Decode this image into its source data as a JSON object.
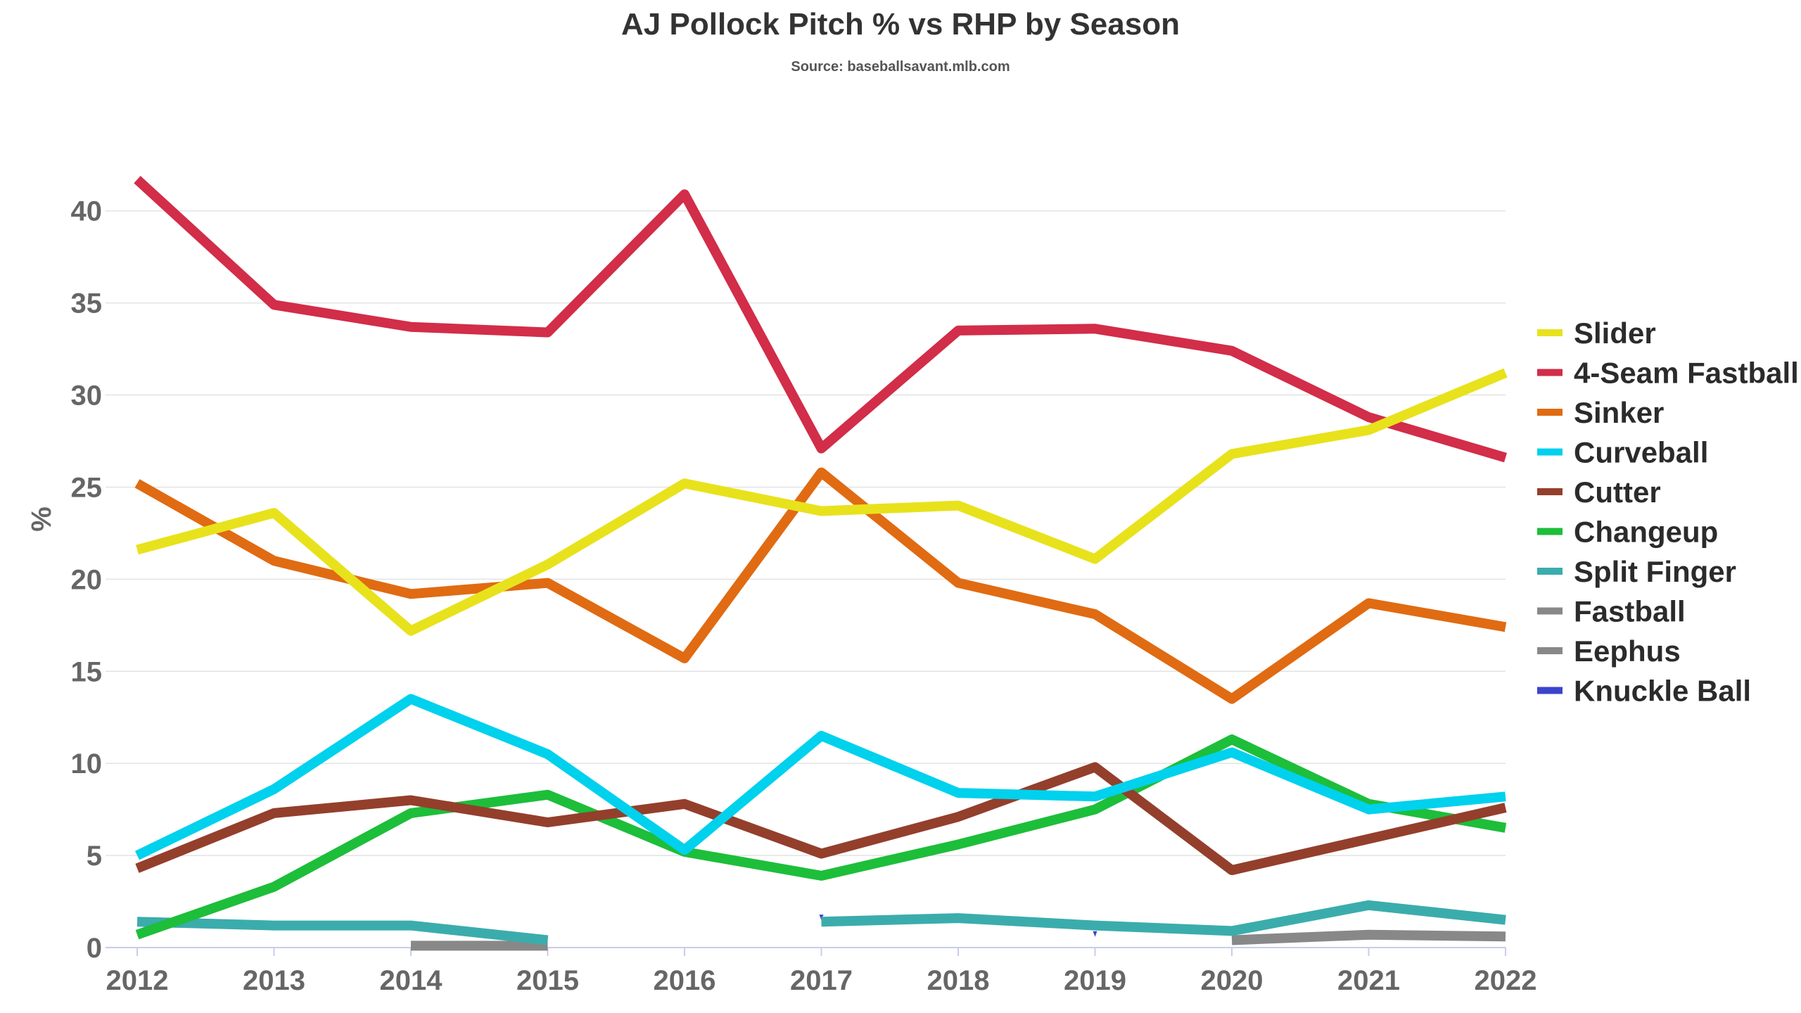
{
  "chart_data": {
    "type": "line",
    "title": "AJ Pollock Pitch % vs RHP by Season",
    "subtitle": "Source: baseballsavant.mlb.com",
    "xlabel": "",
    "ylabel": "%",
    "x": [
      2012,
      2013,
      2014,
      2015,
      2016,
      2017,
      2018,
      2019,
      2020,
      2021,
      2022
    ],
    "ylim": [
      0,
      44
    ],
    "yticks": [
      0,
      5,
      10,
      15,
      20,
      25,
      30,
      35,
      40
    ],
    "grid": true,
    "legend_position": "right",
    "series": [
      {
        "name": "Slider",
        "color": "#e8e21c",
        "values": [
          21.6,
          23.6,
          17.2,
          20.8,
          25.2,
          23.7,
          24.0,
          21.1,
          26.8,
          28.1,
          31.2
        ]
      },
      {
        "name": "4-Seam Fastball",
        "color": "#d22d49",
        "values": [
          41.7,
          34.9,
          33.7,
          33.4,
          40.9,
          27.1,
          33.5,
          33.6,
          32.4,
          28.8,
          26.6
        ]
      },
      {
        "name": "Sinker",
        "color": "#e06b12",
        "values": [
          25.2,
          21.0,
          19.2,
          19.8,
          15.7,
          25.8,
          19.8,
          18.1,
          13.5,
          18.7,
          17.4
        ]
      },
      {
        "name": "Curveball",
        "color": "#00d1ed",
        "values": [
          5.0,
          8.6,
          13.5,
          10.5,
          5.3,
          11.5,
          8.4,
          8.2,
          10.6,
          7.5,
          8.2
        ]
      },
      {
        "name": "Cutter",
        "color": "#933f2c",
        "values": [
          4.3,
          7.3,
          8.0,
          6.8,
          7.8,
          5.1,
          7.1,
          9.8,
          4.2,
          5.9,
          7.6
        ]
      },
      {
        "name": "Changeup",
        "color": "#1dbe3a",
        "values": [
          0.7,
          3.3,
          7.3,
          8.3,
          5.2,
          3.9,
          5.6,
          7.5,
          11.3,
          7.8,
          6.5
        ]
      },
      {
        "name": "Split Finger",
        "color": "#3bacac",
        "values": [
          1.4,
          1.2,
          1.2,
          0.4,
          null,
          1.4,
          1.6,
          1.2,
          0.9,
          2.3,
          1.5
        ]
      },
      {
        "name": "Fastball",
        "color": "#888888",
        "values": [
          null,
          null,
          0.1,
          0.1,
          null,
          null,
          null,
          null,
          0.4,
          0.7,
          0.6
        ]
      },
      {
        "name": "Eephus",
        "color": "#888888",
        "values": [
          null,
          null,
          null,
          null,
          null,
          null,
          null,
          null,
          null,
          null,
          null
        ]
      },
      {
        "name": "Knuckle Ball",
        "color": "#3c44cd",
        "values": [
          null,
          null,
          null,
          null,
          null,
          1.6,
          null,
          0.7,
          null,
          null,
          null
        ]
      }
    ]
  }
}
